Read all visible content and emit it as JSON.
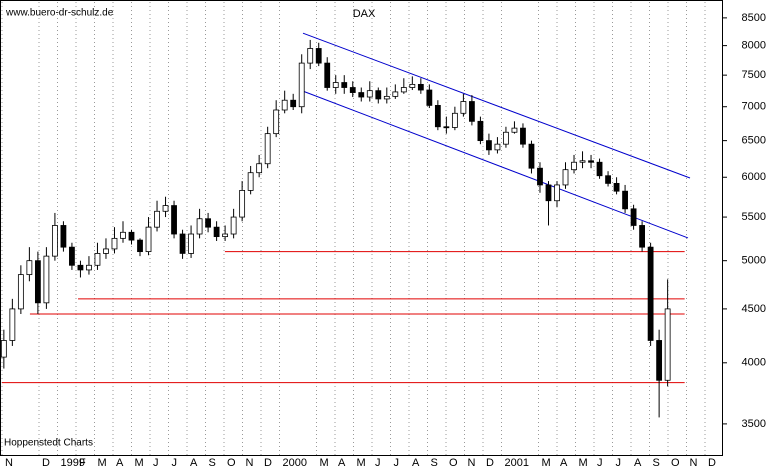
{
  "chart_data": {
    "type": "candlestick",
    "title": "DAX",
    "site": "www.buero-dr-schulz.de",
    "source": "Hoppenstedt Charts",
    "log_y": true,
    "grid": true,
    "xlim": [
      0,
      39
    ],
    "ylim": [
      3270,
      8800
    ],
    "yticks": [
      3500,
      4000,
      4500,
      5000,
      5500,
      6000,
      6500,
      7000,
      7500,
      8000,
      8500
    ],
    "xticks": [
      {
        "value": 0,
        "label": "N"
      },
      {
        "value": 2,
        "label": "D"
      },
      {
        "value": 3,
        "label": "1999"
      },
      {
        "value": 4,
        "label": "F"
      },
      {
        "value": 5,
        "label": "M"
      },
      {
        "value": 6,
        "label": "A"
      },
      {
        "value": 7,
        "label": "M"
      },
      {
        "value": 8,
        "label": "J"
      },
      {
        "value": 9,
        "label": "J"
      },
      {
        "value": 10,
        "label": "A"
      },
      {
        "value": 11,
        "label": "S"
      },
      {
        "value": 12,
        "label": "O"
      },
      {
        "value": 13,
        "label": "N"
      },
      {
        "value": 14,
        "label": "D"
      },
      {
        "value": 15,
        "label": "2000"
      },
      {
        "value": 17,
        "label": "M"
      },
      {
        "value": 18,
        "label": "A"
      },
      {
        "value": 19,
        "label": "M"
      },
      {
        "value": 20,
        "label": "J"
      },
      {
        "value": 21,
        "label": "J"
      },
      {
        "value": 22,
        "label": "A"
      },
      {
        "value": 23,
        "label": "S"
      },
      {
        "value": 24,
        "label": "O"
      },
      {
        "value": 25,
        "label": "N"
      },
      {
        "value": 26,
        "label": "D"
      },
      {
        "value": 27,
        "label": "2001"
      },
      {
        "value": 29,
        "label": "M"
      },
      {
        "value": 30,
        "label": "A"
      },
      {
        "value": 31,
        "label": "M"
      },
      {
        "value": 32,
        "label": "J"
      },
      {
        "value": 33,
        "label": "J"
      },
      {
        "value": 34,
        "label": "A"
      },
      {
        "value": 35,
        "label": "S"
      },
      {
        "value": 36,
        "label": "O"
      },
      {
        "value": 37,
        "label": "N"
      },
      {
        "value": 38,
        "label": "D"
      }
    ],
    "up_color": "#ffffff",
    "down_color": "#000000",
    "x": [
      0.1,
      0.56,
      1.02,
      1.48,
      1.94,
      2.4,
      2.86,
      3.32,
      3.78,
      4.24,
      4.7,
      5.16,
      5.62,
      6.08,
      6.54,
      7,
      7.46,
      7.92,
      8.38,
      8.84,
      9.3,
      9.76,
      10.22,
      10.68,
      11.14,
      11.6,
      12.06,
      12.52,
      12.98,
      13.44,
      13.9,
      14.36,
      14.82,
      15.28,
      15.74,
      16.2,
      16.66,
      17.12,
      17.58,
      18.04,
      18.5,
      18.96,
      19.42,
      19.88,
      20.34,
      20.8,
      21.26,
      21.72,
      22.18,
      22.64,
      23.1,
      23.56,
      24.02,
      24.48,
      24.94,
      25.4,
      25.86,
      26.32,
      26.78,
      27.24,
      27.7,
      28.16,
      28.62,
      29.08,
      29.54,
      30,
      30.46,
      30.92,
      31.38,
      31.84,
      32.3,
      32.76,
      33.22,
      33.68,
      34.14,
      34.6,
      35.06,
      35.52,
      35.98
    ],
    "open": [
      4050,
      4200,
      4500,
      4850,
      5000,
      4560,
      5050,
      5400,
      5150,
      4950,
      4900,
      4950,
      5080,
      5130,
      5250,
      5320,
      5230,
      5100,
      5380,
      5570,
      5640,
      5300,
      5080,
      5300,
      5480,
      5380,
      5270,
      5300,
      5500,
      5830,
      6060,
      6180,
      6600,
      6950,
      7100,
      7000,
      7700,
      7950,
      7700,
      7300,
      7380,
      7300,
      7220,
      7150,
      7250,
      7120,
      7160,
      7230,
      7300,
      7350,
      7260,
      7020,
      6700,
      6690,
      6900,
      7080,
      6780,
      6500,
      6370,
      6450,
      6620,
      6680,
      6450,
      6120,
      5900,
      5700,
      5900,
      6100,
      6200,
      6220,
      6200,
      6020,
      5920,
      5820,
      5600,
      5400,
      5150,
      4200,
      3850
    ],
    "high": [
      4300,
      4600,
      4950,
      5150,
      5100,
      5150,
      5550,
      5450,
      5200,
      5000,
      5050,
      5200,
      5250,
      5380,
      5450,
      5350,
      5250,
      5500,
      5700,
      5750,
      5700,
      5350,
      5400,
      5600,
      5550,
      5450,
      5400,
      5600,
      5950,
      6150,
      6300,
      6700,
      7100,
      7250,
      7200,
      7850,
      8100,
      8050,
      7800,
      7500,
      7500,
      7400,
      7300,
      7400,
      7300,
      7300,
      7350,
      7450,
      7480,
      7450,
      7350,
      7100,
      6850,
      7000,
      7200,
      7180,
      6850,
      6600,
      6550,
      6700,
      6780,
      6750,
      6500,
      6200,
      5950,
      5950,
      6200,
      6300,
      6350,
      6300,
      6250,
      6080,
      6000,
      5900,
      5650,
      5450,
      5200,
      4300,
      4800
    ],
    "low": [
      3950,
      4150,
      4450,
      4780,
      4450,
      4500,
      5000,
      5100,
      4900,
      4820,
      4850,
      4900,
      5020,
      5080,
      5200,
      5180,
      5050,
      5060,
      5330,
      5500,
      5250,
      5020,
      5030,
      5250,
      5320,
      5220,
      5220,
      5250,
      5450,
      5780,
      6000,
      6120,
      6550,
      6900,
      6950,
      6900,
      7600,
      7650,
      7250,
      7200,
      7200,
      7150,
      7080,
      7080,
      7050,
      7050,
      7120,
      7200,
      7260,
      7200,
      6980,
      6650,
      6600,
      6650,
      6850,
      6720,
      6450,
      6300,
      6320,
      6400,
      6600,
      6400,
      6050,
      5800,
      5400,
      5620,
      5850,
      6050,
      6120,
      6120,
      5980,
      5880,
      5780,
      5550,
      5350,
      5100,
      4150,
      3550,
      3800
    ],
    "close": [
      4200,
      4500,
      4850,
      5000,
      4560,
      5050,
      5400,
      5150,
      4950,
      4900,
      4950,
      5080,
      5130,
      5250,
      5320,
      5230,
      5100,
      5380,
      5570,
      5640,
      5300,
      5080,
      5300,
      5480,
      5380,
      5270,
      5300,
      5500,
      5830,
      6060,
      6180,
      6600,
      6950,
      7100,
      7000,
      7700,
      7950,
      7700,
      7300,
      7380,
      7300,
      7220,
      7150,
      7250,
      7120,
      7160,
      7230,
      7300,
      7350,
      7260,
      7020,
      6700,
      6690,
      6900,
      7080,
      6780,
      6500,
      6370,
      6450,
      6620,
      6680,
      6450,
      6120,
      5900,
      5700,
      5900,
      6100,
      6200,
      6220,
      6200,
      6020,
      5920,
      5820,
      5600,
      5400,
      5150,
      4200,
      3850,
      4500
    ],
    "trend_lines": [
      {
        "color": "#0000cc",
        "x": [
          16.27,
          37.19
        ],
        "y": [
          8220,
          5990
        ]
      },
      {
        "color": "#0000cc",
        "x": [
          16.11,
          37.08
        ],
        "y": [
          7260,
          5255
        ]
      }
    ],
    "hlines": [
      {
        "color": "#e00000",
        "value": 5100,
        "x": [
          12.05,
          36.9
        ]
      },
      {
        "color": "#e00000",
        "value": 4600,
        "x": [
          4.11,
          36.9
        ]
      },
      {
        "color": "#e00000",
        "value": 4450,
        "x": [
          1.51,
          36.9
        ]
      },
      {
        "color": "#e00000",
        "value": 3830,
        "x": [
          0,
          36.9
        ]
      }
    ]
  }
}
